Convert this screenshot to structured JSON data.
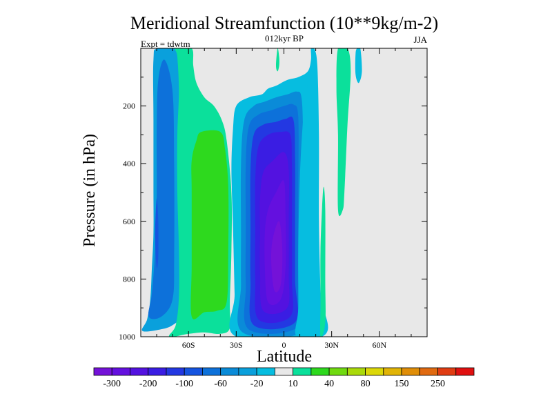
{
  "chart_data": {
    "type": "filled-contour",
    "title": "Meridional Streamfunction (10**9kg/m-2)",
    "subtitle_center": "012kyr BP",
    "subtitle_left": "Expt = tdwtm",
    "subtitle_right": "JJA",
    "xlabel": "Latitude",
    "ylabel": "Pressure (in hPa)",
    "xlim": [
      -90,
      90
    ],
    "ylim": [
      1000,
      0
    ],
    "x_ticks": [
      {
        "value": -60,
        "label": "60S"
      },
      {
        "value": -30,
        "label": "30S"
      },
      {
        "value": 0,
        "label": "0"
      },
      {
        "value": 30,
        "label": "30N"
      },
      {
        "value": 60,
        "label": "60N"
      }
    ],
    "y_ticks": [
      {
        "value": 200,
        "label": "200"
      },
      {
        "value": 400,
        "label": "400"
      },
      {
        "value": 600,
        "label": "600"
      },
      {
        "value": 800,
        "label": "800"
      },
      {
        "value": 1000,
        "label": "1000"
      }
    ],
    "colorbar": {
      "colors": [
        "#7412d8",
        "#6410df",
        "#5312e0",
        "#3a1de3",
        "#2338e2",
        "#1554e0",
        "#0d71da",
        "#0a8bd8",
        "#0aa0dc",
        "#06bde0",
        "#e8e8e8",
        "#0be09b",
        "#2ed91e",
        "#70da10",
        "#aada0a",
        "#dcd808",
        "#e1b406",
        "#e08e08",
        "#e06a10",
        "#e03c12",
        "#e01010"
      ],
      "labels": [
        {
          "after_index": 0,
          "text": "-300"
        },
        {
          "after_index": 2,
          "text": "-200"
        },
        {
          "after_index": 4,
          "text": "-100"
        },
        {
          "after_index": 6,
          "text": "-60"
        },
        {
          "after_index": 8,
          "text": "-20"
        },
        {
          "after_index": 10,
          "text": "10"
        },
        {
          "after_index": 12,
          "text": "40"
        },
        {
          "after_index": 14,
          "text": "80"
        },
        {
          "after_index": 16,
          "text": "150"
        },
        {
          "after_index": 18,
          "text": "250"
        }
      ]
    },
    "contours": [
      {
        "name": "sh-cell-outer",
        "color": "#0aa0dc",
        "pts": [
          [
            -89,
            980
          ],
          [
            -86,
            940
          ],
          [
            -84,
            870
          ],
          [
            -83,
            760
          ],
          [
            -82,
            640
          ],
          [
            -82,
            480
          ],
          [
            -82,
            250
          ],
          [
            -82,
            40
          ],
          [
            -79,
            0
          ],
          [
            -61,
            0
          ],
          [
            -63,
            60
          ],
          [
            -64,
            200
          ],
          [
            -62,
            400
          ],
          [
            -62,
            600
          ],
          [
            -62,
            800
          ],
          [
            -64,
            920
          ],
          [
            -70,
            960
          ],
          [
            -78,
            975
          ]
        ]
      },
      {
        "name": "sh-cell-mid",
        "color": "#0d71da",
        "pts": [
          [
            -85,
            930
          ],
          [
            -83,
            850
          ],
          [
            -81,
            700
          ],
          [
            -80,
            500
          ],
          [
            -80,
            280
          ],
          [
            -79,
            110
          ],
          [
            -75,
            40
          ],
          [
            -70,
            150
          ],
          [
            -69,
            400
          ],
          [
            -69,
            720
          ],
          [
            -70,
            870
          ],
          [
            -77,
            930
          ]
        ]
      },
      {
        "name": "sh-cell-core",
        "color": "#1554e0",
        "pts": [
          [
            -81,
            650
          ],
          [
            -80,
            520
          ],
          [
            -79,
            600
          ],
          [
            -79,
            720
          ],
          [
            -80,
            760
          ]
        ]
      },
      {
        "name": "sh-ferrel-outer",
        "color": "#0be09b",
        "pts": [
          [
            -72,
            1000
          ],
          [
            -68,
            960
          ],
          [
            -66,
            860
          ],
          [
            -66,
            700
          ],
          [
            -67,
            500
          ],
          [
            -67,
            300
          ],
          [
            -66,
            150
          ],
          [
            -67,
            30
          ],
          [
            -68,
            0
          ],
          [
            -58,
            0
          ],
          [
            -57,
            60
          ],
          [
            -55,
            120
          ],
          [
            -50,
            170
          ],
          [
            -44,
            200
          ],
          [
            -39,
            250
          ],
          [
            -36,
            320
          ],
          [
            -33,
            500
          ],
          [
            -33,
            700
          ],
          [
            -34,
            880
          ],
          [
            -34,
            970
          ],
          [
            -40,
            990
          ],
          [
            -50,
            985
          ],
          [
            -60,
            990
          ]
        ]
      },
      {
        "name": "sh-ferrel-core",
        "color": "#2ed91e",
        "pts": [
          [
            -58,
            930
          ],
          [
            -58,
            750
          ],
          [
            -58,
            500
          ],
          [
            -58,
            390
          ],
          [
            -55,
            320
          ],
          [
            -52,
            290
          ],
          [
            -40,
            290
          ],
          [
            -37,
            350
          ],
          [
            -35,
            480
          ],
          [
            -35,
            700
          ],
          [
            -36,
            880
          ],
          [
            -42,
            910
          ],
          [
            -50,
            915
          ]
        ]
      },
      {
        "name": "hadley-ring-1",
        "color": "#06bde0",
        "pts": [
          [
            -30,
            1000
          ],
          [
            -31,
            850
          ],
          [
            -32,
            620
          ],
          [
            -33,
            420
          ],
          [
            -32,
            280
          ],
          [
            -30,
            200
          ],
          [
            -22,
            170
          ],
          [
            -14,
            160
          ],
          [
            -10,
            140
          ],
          [
            -5,
            130
          ],
          [
            2,
            110
          ],
          [
            9,
            100
          ],
          [
            15,
            80
          ],
          [
            17,
            40
          ],
          [
            17,
            0
          ],
          [
            19,
            0
          ],
          [
            21,
            60
          ],
          [
            22,
            300
          ],
          [
            22,
            600
          ],
          [
            23,
            850
          ],
          [
            24,
            1000
          ]
        ]
      },
      {
        "name": "hadley-ring-2",
        "color": "#0a8bd8",
        "pts": [
          [
            -26,
            985
          ],
          [
            -27,
            820
          ],
          [
            -27,
            640
          ],
          [
            -27,
            400
          ],
          [
            -25,
            250
          ],
          [
            -19,
            200
          ],
          [
            -12,
            185
          ],
          [
            -5,
            170
          ],
          [
            2,
            160
          ],
          [
            8,
            150
          ],
          [
            11,
            170
          ],
          [
            12,
            300
          ],
          [
            12,
            600
          ],
          [
            13,
            800
          ],
          [
            13,
            980
          ]
        ]
      },
      {
        "name": "hadley-ring-3",
        "color": "#0d71da",
        "pts": [
          [
            -22,
            975
          ],
          [
            -24,
            820
          ],
          [
            -24,
            620
          ],
          [
            -24,
            400
          ],
          [
            -22,
            270
          ],
          [
            -16,
            230
          ],
          [
            -8,
            215
          ],
          [
            0,
            200
          ],
          [
            6,
            195
          ],
          [
            9,
            240
          ],
          [
            9,
            500
          ],
          [
            9,
            760
          ],
          [
            10,
            960
          ]
        ]
      },
      {
        "name": "hadley-ring-4",
        "color": "#2338e2",
        "pts": [
          [
            -19,
            960
          ],
          [
            -21,
            810
          ],
          [
            -21,
            620
          ],
          [
            -21,
            420
          ],
          [
            -19,
            300
          ],
          [
            -13,
            265
          ],
          [
            -5,
            255
          ],
          [
            1,
            245
          ],
          [
            6,
            248
          ],
          [
            7,
            380
          ],
          [
            7,
            600
          ],
          [
            7,
            800
          ],
          [
            7,
            950
          ]
        ]
      },
      {
        "name": "hadley-ring-5",
        "color": "#3a1de3",
        "pts": [
          [
            -16,
            940
          ],
          [
            -18,
            800
          ],
          [
            -18,
            620
          ],
          [
            -18,
            450
          ],
          [
            -16,
            340
          ],
          [
            -10,
            300
          ],
          [
            -2,
            290
          ],
          [
            4,
            300
          ],
          [
            5,
            400
          ],
          [
            5,
            620
          ],
          [
            5,
            800
          ],
          [
            4,
            930
          ]
        ]
      },
      {
        "name": "hadley-ring-6",
        "color": "#5312e0",
        "pts": [
          [
            -13,
            910
          ],
          [
            -15,
            780
          ],
          [
            -15,
            640
          ],
          [
            -15,
            520
          ],
          [
            -13,
            430
          ],
          [
            -7,
            390
          ],
          [
            0,
            360
          ],
          [
            3,
            420
          ],
          [
            3,
            600
          ],
          [
            3,
            780
          ],
          [
            2,
            900
          ]
        ]
      },
      {
        "name": "hadley-ring-7",
        "color": "#6410df",
        "pts": [
          [
            -10,
            880
          ],
          [
            -12,
            760
          ],
          [
            -12,
            640
          ],
          [
            -10,
            560
          ],
          [
            -5,
            500
          ],
          [
            0,
            460
          ],
          [
            1,
            580
          ],
          [
            1,
            760
          ],
          [
            -2,
            870
          ]
        ]
      },
      {
        "name": "hadley-core",
        "color": "#7412d8",
        "pts": [
          [
            -6,
            840
          ],
          [
            -8,
            740
          ],
          [
            -7,
            660
          ],
          [
            -3,
            600
          ],
          [
            -1,
            700
          ],
          [
            -2,
            820
          ]
        ]
      },
      {
        "name": "nh-band-1",
        "color": "#06bde0",
        "pts": [
          [
            8,
            1000
          ],
          [
            9,
            900
          ],
          [
            9,
            700
          ],
          [
            10,
            450
          ],
          [
            12,
            250
          ],
          [
            14,
            170
          ],
          [
            15,
            120
          ],
          [
            17,
            70
          ],
          [
            19,
            40
          ],
          [
            20,
            150
          ],
          [
            21,
            420
          ],
          [
            22,
            720
          ],
          [
            23,
            900
          ],
          [
            24,
            1000
          ]
        ]
      },
      {
        "name": "nh-band-2",
        "color": "#0be09b",
        "pts": [
          [
            23,
            1000
          ],
          [
            23,
            880
          ],
          [
            23,
            700
          ],
          [
            24,
            550
          ],
          [
            25,
            480
          ],
          [
            26,
            560
          ],
          [
            26,
            800
          ],
          [
            26,
            950
          ]
        ]
      },
      {
        "name": "nh-band-3",
        "color": "#0be09b",
        "pts": [
          [
            34,
            560
          ],
          [
            34,
            300
          ],
          [
            33,
            140
          ],
          [
            34,
            0
          ],
          [
            40,
            0
          ],
          [
            42,
            80
          ],
          [
            40,
            260
          ],
          [
            38,
            500
          ],
          [
            37,
            560
          ]
        ]
      },
      {
        "name": "nh-band-4",
        "color": "#06bde0",
        "pts": [
          [
            45,
            20
          ],
          [
            46,
            0
          ],
          [
            48,
            0
          ],
          [
            49,
            80
          ],
          [
            47,
            120
          ],
          [
            45,
            90
          ]
        ]
      },
      {
        "name": "upper-blob",
        "color": "#0be09b",
        "pts": [
          [
            -4,
            0
          ],
          [
            -3,
            30
          ],
          [
            -3,
            60
          ],
          [
            -4,
            80
          ],
          [
            -5,
            60
          ]
        ]
      }
    ]
  }
}
